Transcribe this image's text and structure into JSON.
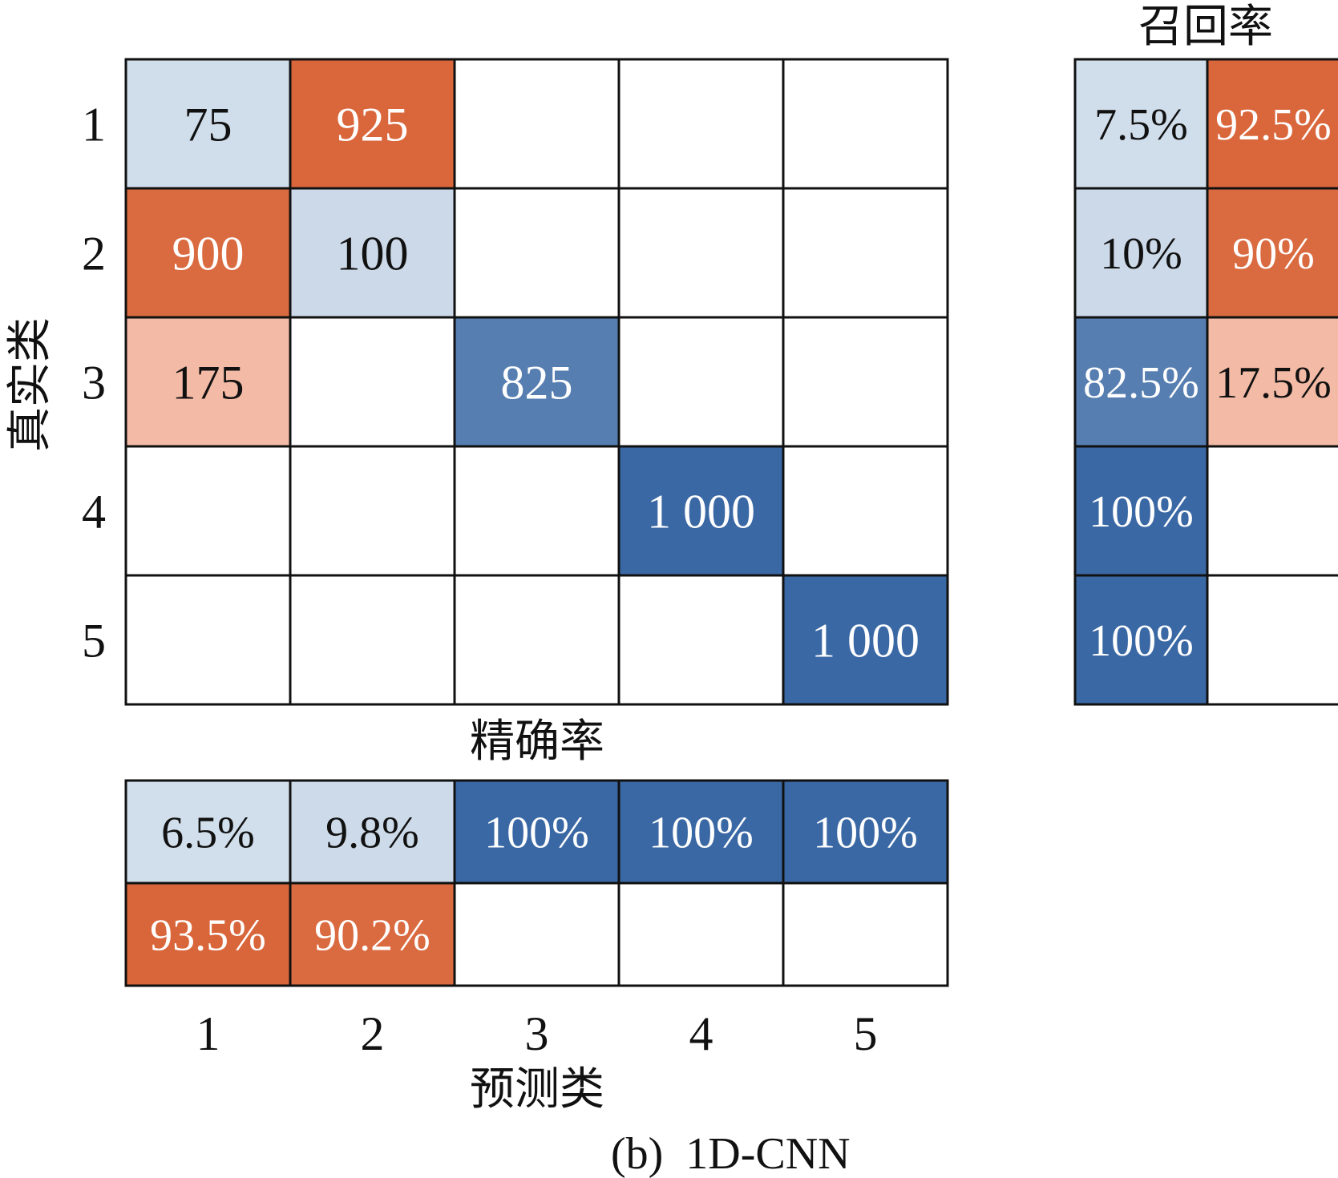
{
  "chart_data": {
    "type": "heatmap",
    "caption": "(b)  1D-CNN",
    "xlabel": "预测类",
    "ylabel": "真实类",
    "x_tick_labels": [
      "1",
      "2",
      "3",
      "4",
      "5"
    ],
    "y_tick_labels": [
      "1",
      "2",
      "3",
      "4",
      "5"
    ],
    "confusion_matrix": {
      "values": [
        [
          75,
          925,
          null,
          null,
          null
        ],
        [
          900,
          100,
          null,
          null,
          null
        ],
        [
          175,
          null,
          825,
          null,
          null
        ],
        [
          null,
          null,
          null,
          1000,
          null
        ],
        [
          null,
          null,
          null,
          null,
          1000
        ]
      ],
      "labels": [
        [
          "75",
          "925",
          "",
          "",
          ""
        ],
        [
          "900",
          "100",
          "",
          "",
          ""
        ],
        [
          "175",
          "",
          "825",
          "",
          ""
        ],
        [
          "",
          "",
          "",
          "1 000",
          ""
        ],
        [
          "",
          "",
          "",
          "",
          "1 000"
        ]
      ]
    },
    "recall": {
      "title": "召回率",
      "correct": [
        7.5,
        10,
        82.5,
        100,
        100
      ],
      "incorrect": [
        92.5,
        90,
        17.5,
        null,
        null
      ],
      "correct_labels": [
        "7.5%",
        "10%",
        "82.5%",
        "100%",
        "100%"
      ],
      "incorrect_labels": [
        "92.5%",
        "90%",
        "17.5%",
        "",
        ""
      ]
    },
    "precision": {
      "title": "精确率",
      "correct": [
        6.5,
        9.8,
        100,
        100,
        100
      ],
      "incorrect": [
        93.5,
        90.2,
        null,
        null,
        null
      ],
      "correct_labels": [
        "6.5%",
        "9.8%",
        "100%",
        "100%",
        "100%"
      ],
      "incorrect_labels": [
        "93.5%",
        "90.2%",
        "",
        "",
        ""
      ]
    },
    "colors": {
      "correct_low": "#dce6f0",
      "correct_high": "#3a68a4",
      "incorrect_low": "#f9cdbd",
      "incorrect_high": "#d75f31",
      "grid": "#111111",
      "empty": "#ffffff"
    }
  }
}
